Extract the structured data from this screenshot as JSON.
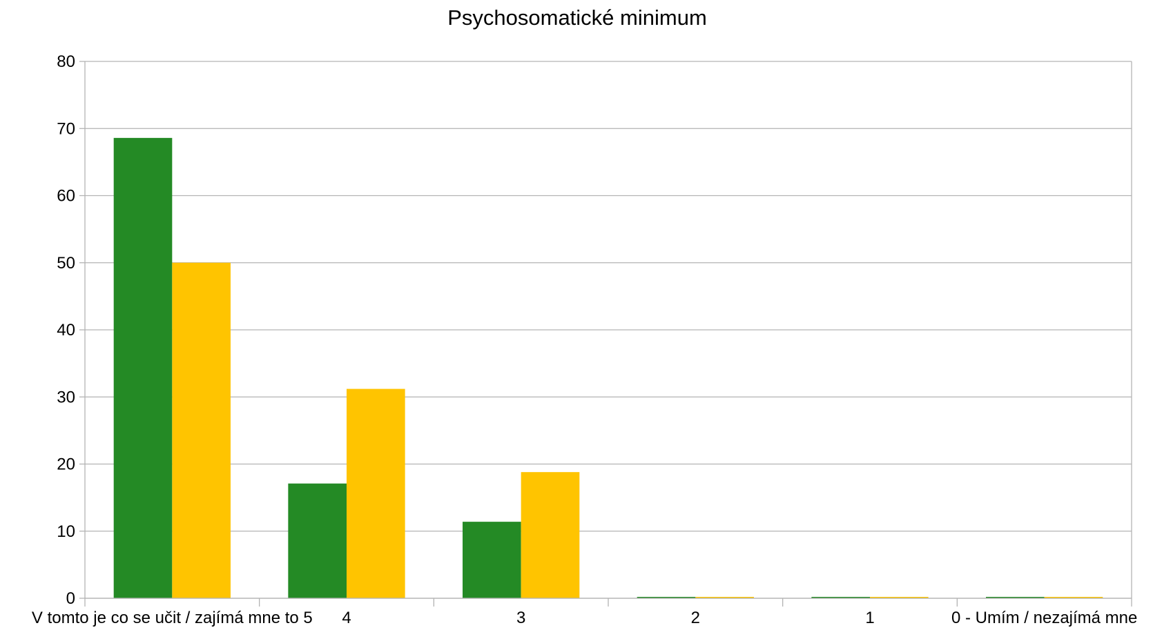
{
  "chart_data": {
    "type": "bar",
    "title": "Psychosomatické minimum",
    "xlabel": "",
    "ylabel": "",
    "categories": [
      "V tomto je co se učit / zajímá mne to  5",
      "4",
      "3",
      "2",
      "1",
      "0 - Umím / nezajímá mne"
    ],
    "series": [
      {
        "color": "#248a25",
        "values": [
          68.6,
          17.1,
          11.4,
          0,
          0,
          0
        ]
      },
      {
        "color": "#ffc400",
        "values": [
          50.0,
          31.2,
          18.8,
          0,
          0,
          0
        ]
      }
    ],
    "ylim": [
      0,
      80
    ],
    "yticks": [
      0,
      10,
      20,
      30,
      40,
      50,
      60,
      70,
      80
    ],
    "grid": true,
    "legend": "none"
  }
}
